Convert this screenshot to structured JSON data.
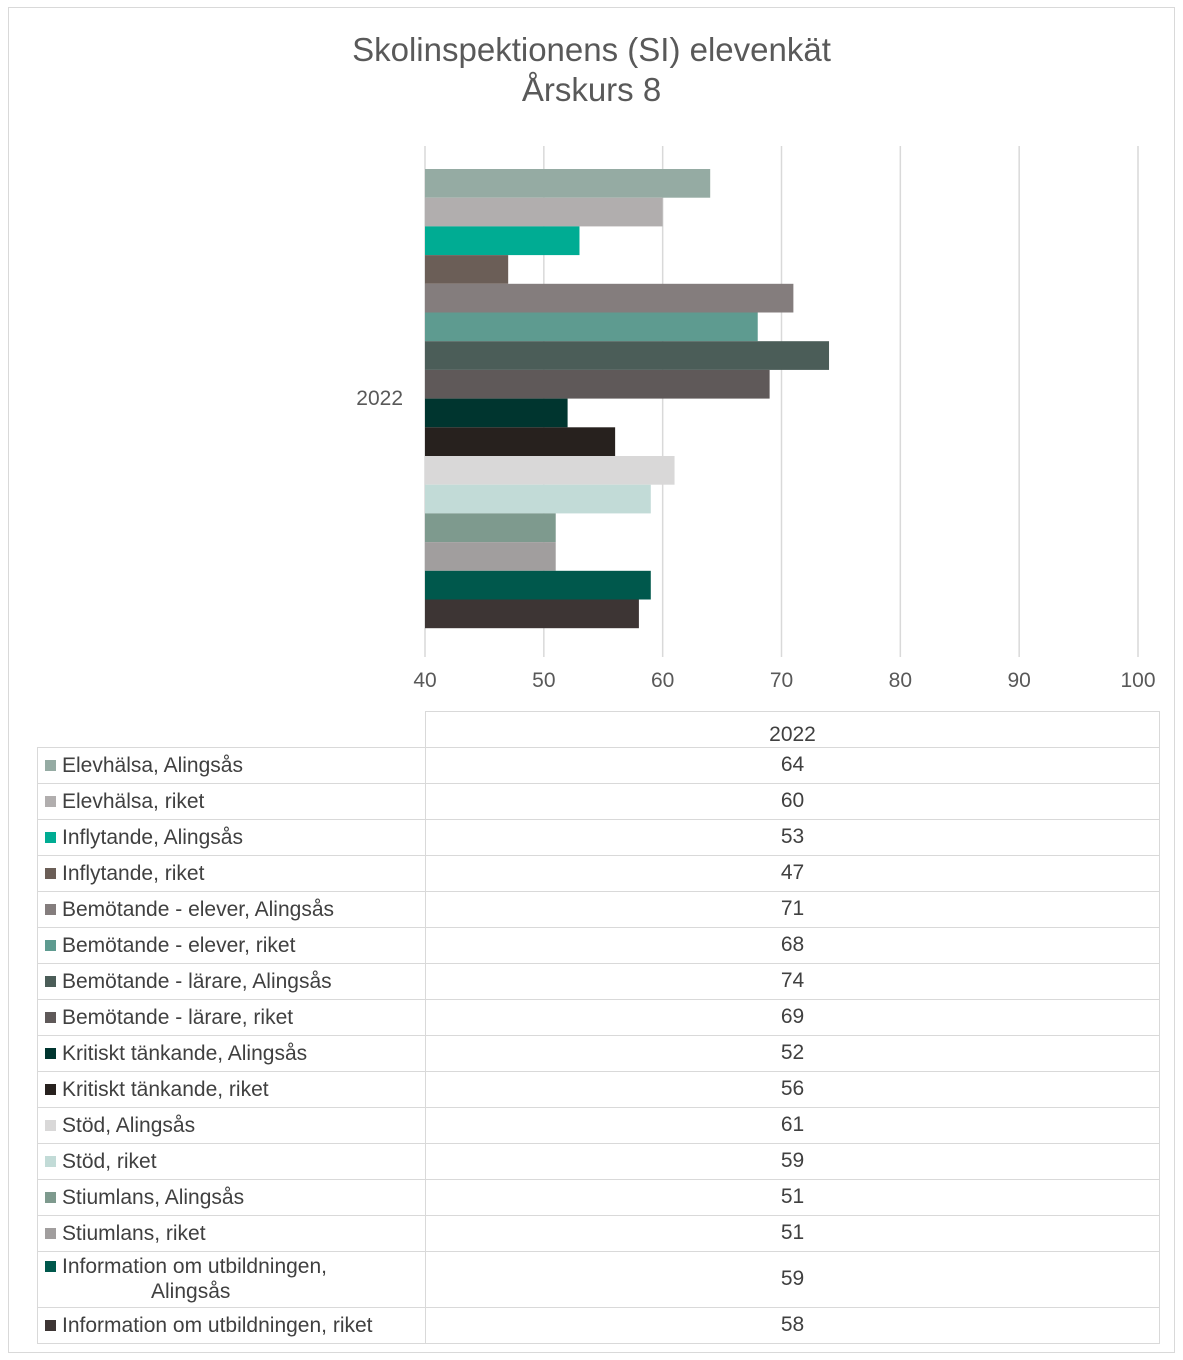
{
  "chart_data": {
    "type": "bar",
    "orientation": "horizontal",
    "title_lines": [
      "Skolinspektionens (SI) elevenkät",
      "Årskurs 8"
    ],
    "categories": [
      "2022"
    ],
    "xlim": [
      40,
      100
    ],
    "xticks": [
      "40",
      "50",
      "60",
      "70",
      "80",
      "90",
      "100"
    ],
    "grid": "vertical",
    "legend": "data-table-below",
    "series": [
      {
        "name": "Elevhälsa, Alingsås",
        "values": [
          64
        ],
        "color": "#95ABA3"
      },
      {
        "name": "Elevhälsa, riket",
        "values": [
          60
        ],
        "color": "#B1AEAE"
      },
      {
        "name": "Inflytande, Alingsås",
        "values": [
          53
        ],
        "color": "#00AC93"
      },
      {
        "name": "Inflytande, riket",
        "values": [
          47
        ],
        "color": "#6B5E57"
      },
      {
        "name": "Bemötande - elever, Alingsås",
        "values": [
          71
        ],
        "color": "#847D7D"
      },
      {
        "name": "Bemötande - elever, riket",
        "values": [
          68
        ],
        "color": "#5E9B90"
      },
      {
        "name": "Bemötande - lärare, Alingsås",
        "values": [
          74
        ],
        "color": "#4B5D58"
      },
      {
        "name": "Bemötande - lärare, riket",
        "values": [
          69
        ],
        "color": "#5F5959"
      },
      {
        "name": "Kritiskt tänkande, Alingsås",
        "values": [
          52
        ],
        "color": "#00352F"
      },
      {
        "name": "Kritiskt tänkande, riket",
        "values": [
          56
        ],
        "color": "#27211E"
      },
      {
        "name": "Stöd, Alingsås",
        "values": [
          61
        ],
        "color": "#D9D8D8"
      },
      {
        "name": "Stöd, riket",
        "values": [
          59
        ],
        "color": "#C2DBD7"
      },
      {
        "name": "Stiumlans, Alingsås",
        "values": [
          51
        ],
        "color": "#7E9A8E"
      },
      {
        "name": "Stiumlans, riket",
        "values": [
          51
        ],
        "color": "#A19E9E"
      },
      {
        "name": "Information om utbildningen, Alingsås",
        "values": [
          59
        ],
        "color": "#00584C"
      },
      {
        "name": "Information om utbildningen, riket",
        "values": [
          58
        ],
        "color": "#3D3534"
      }
    ]
  }
}
